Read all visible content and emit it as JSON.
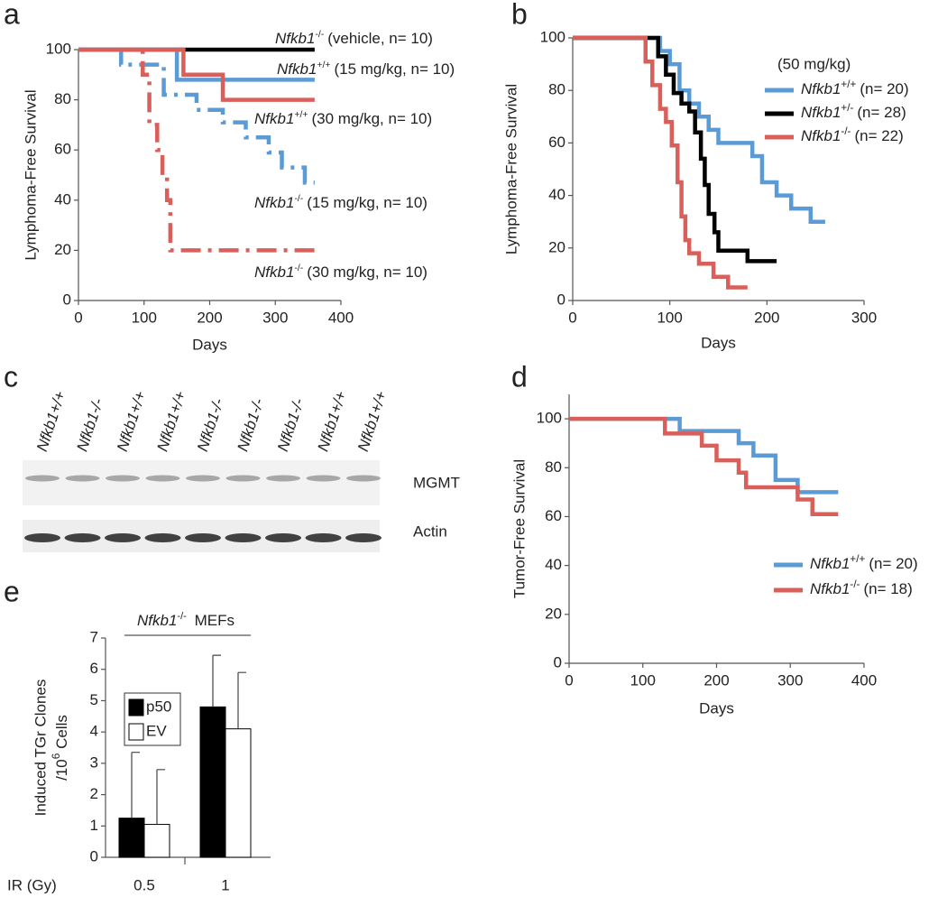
{
  "chart_data": [
    {
      "type": "step",
      "panel": "a",
      "xlabel": "Days",
      "ylabel": "Lymphoma-Free Survival",
      "xlim": [
        0,
        400
      ],
      "xticks": [
        0,
        100,
        200,
        300,
        400
      ],
      "ylim": [
        0,
        100
      ],
      "yticks": [
        0,
        20,
        40,
        60,
        80,
        100
      ],
      "series": [
        {
          "name": "Nfkb1",
          "genotype": "-/-",
          "note": "(vehicle, n= 10)",
          "color": "#000000",
          "dashed": false,
          "x": [
            0,
            360
          ],
          "values": [
            100,
            100
          ]
        },
        {
          "name": "Nfkb1",
          "genotype": "+/+",
          "note": "(15 mg/kg, n= 10)",
          "color": "#5b9bd5",
          "dashed": false,
          "x": [
            0,
            150,
            360
          ],
          "values": [
            100,
            88,
            88
          ]
        },
        {
          "name": "Nfkb1",
          "genotype": "+/+",
          "note": "(30 mg/kg, n= 10)",
          "color": "#d9605a",
          "dashed": false,
          "x": [
            0,
            160,
            220,
            360
          ],
          "values": [
            100,
            90,
            80,
            80
          ]
        },
        {
          "name": "Nfkb1",
          "genotype": "-/-",
          "note": "(15 mg/kg, n= 10)",
          "color": "#5b9bd5",
          "dashed": true,
          "x": [
            0,
            65,
            130,
            180,
            220,
            255,
            290,
            310,
            345,
            360
          ],
          "values": [
            100,
            94,
            82,
            76,
            71,
            65,
            59,
            53,
            47,
            47
          ]
        },
        {
          "name": "Nfkb1",
          "genotype": "-/-",
          "note": "(30 mg/kg, n= 10)",
          "color": "#d9605a",
          "dashed": true,
          "x": [
            0,
            98,
            108,
            120,
            128,
            135,
            140,
            360
          ],
          "values": [
            100,
            90,
            70,
            60,
            50,
            40,
            20,
            20
          ]
        }
      ]
    },
    {
      "type": "step",
      "panel": "b",
      "xlabel": "Days",
      "ylabel": "Lymphoma-Free Survival",
      "annotation": "(50 mg/kg)",
      "xlim": [
        0,
        300
      ],
      "xticks": [
        0,
        100,
        200,
        300
      ],
      "ylim": [
        0,
        100
      ],
      "yticks": [
        0,
        20,
        40,
        60,
        80,
        100
      ],
      "series": [
        {
          "name": "Nfkb1",
          "genotype": "+/+",
          "note": "(n= 20)",
          "color": "#5b9bd5",
          "x": [
            0,
            90,
            100,
            110,
            120,
            130,
            140,
            150,
            165,
            185,
            195,
            210,
            225,
            245,
            260
          ],
          "values": [
            100,
            95,
            90,
            80,
            75,
            70,
            65,
            60,
            60,
            55,
            45,
            40,
            35,
            30,
            30
          ]
        },
        {
          "name": "Nfkb1",
          "genotype": "+/-",
          "note": "(n= 28)",
          "color": "#000000",
          "x": [
            0,
            88,
            96,
            104,
            112,
            120,
            126,
            132,
            136,
            140,
            146,
            150,
            180,
            210
          ],
          "values": [
            100,
            93,
            86,
            79,
            75,
            72,
            64,
            54,
            44,
            33,
            26,
            19,
            15,
            15
          ]
        },
        {
          "name": "Nfkb1",
          "genotype": "-/-",
          "note": "(n= 22)",
          "color": "#d9605a",
          "x": [
            0,
            75,
            82,
            90,
            96,
            102,
            108,
            112,
            116,
            120,
            130,
            145,
            160,
            180
          ],
          "values": [
            100,
            91,
            82,
            73,
            68,
            59,
            45,
            32,
            23,
            18,
            14,
            9,
            5,
            5
          ]
        }
      ]
    },
    {
      "type": "step",
      "panel": "d",
      "xlabel": "Days",
      "ylabel": "Tumor-Free Survival",
      "xlim": [
        0,
        400
      ],
      "xticks": [
        0,
        100,
        200,
        300,
        400
      ],
      "ylim": [
        0,
        110
      ],
      "yticks": [
        0,
        20,
        40,
        60,
        80,
        100
      ],
      "series": [
        {
          "name": "Nfkb1",
          "genotype": "+/+",
          "note": "(n= 20)",
          "color": "#5b9bd5",
          "x": [
            0,
            150,
            230,
            250,
            280,
            310,
            365
          ],
          "values": [
            100,
            95,
            90,
            85,
            75,
            70,
            70
          ]
        },
        {
          "name": "Nfkb1",
          "genotype": "-/-",
          "note": "(n= 18)",
          "color": "#d9605a",
          "x": [
            0,
            130,
            180,
            200,
            230,
            240,
            310,
            330,
            365
          ],
          "values": [
            100,
            94,
            89,
            83,
            78,
            72,
            67,
            61,
            61
          ]
        }
      ]
    },
    {
      "type": "bar",
      "panel": "e",
      "xlabel": "IR (Gy)",
      "ylabel": [
        "Induced TGr Clones",
        "/10",
        "6",
        " Cells"
      ],
      "group_label": {
        "name": "Nfkb1",
        "genotype": "-/-",
        "note": " MEFs"
      },
      "categories": [
        "0.5",
        "1"
      ],
      "ylim": [
        0,
        7
      ],
      "yticks": [
        0,
        1,
        2,
        3,
        4,
        5,
        6,
        7
      ],
      "series": [
        {
          "name": "p50",
          "color": "#000000",
          "values": [
            1.25,
            4.8
          ],
          "errors": [
            2.1,
            1.65
          ]
        },
        {
          "name": "EV",
          "color": "#ffffff",
          "values": [
            1.05,
            4.1
          ],
          "errors": [
            1.75,
            1.8
          ]
        }
      ]
    }
  ],
  "blot": {
    "panel": "c",
    "lanes": [
      "Nfkb1+/+",
      "Nfkb1-/-",
      "Nfkb1+/+",
      "Nfkb1+/+",
      "Nfkb1-/-",
      "Nfkb1-/-",
      "Nfkb1-/-",
      "Nfkb1+/+",
      "Nfkb1+/+"
    ],
    "bands": [
      "MGMT",
      "Actin"
    ]
  }
}
